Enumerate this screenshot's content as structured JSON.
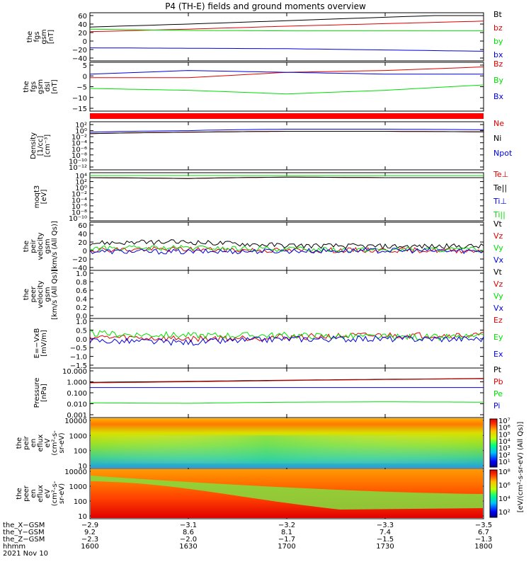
{
  "title": "P4 (TH-E) fields and ground moments overview",
  "colors": {
    "black": "#000000",
    "red": "#e00000",
    "green": "#00e000",
    "blue": "#0000e0",
    "statusbar": "#ff0000"
  },
  "chart_data": [
    {
      "type": "line",
      "name": "fgs_gsm",
      "ylabel": [
        "the",
        "fgs",
        "gsm",
        "[nT]"
      ],
      "yticks": [
        "60",
        "40",
        "20",
        "0",
        "−20",
        "−40"
      ],
      "ylim": [
        -40,
        60
      ],
      "x": [
        1600,
        1630,
        1700,
        1730,
        1800
      ],
      "series": [
        {
          "name": "Bt",
          "color": "#000000",
          "values": [
            33,
            40,
            48,
            56,
            64
          ]
        },
        {
          "name": "bz",
          "color": "#e00000",
          "values": [
            22,
            28,
            35,
            41,
            47
          ]
        },
        {
          "name": "by",
          "color": "#00e000",
          "values": [
            28,
            25,
            24,
            24,
            24
          ]
        },
        {
          "name": "bx",
          "color": "#0000e0",
          "values": [
            -16,
            -17,
            -18,
            -21,
            -24
          ]
        }
      ]
    },
    {
      "type": "line",
      "name": "fgs_dsl",
      "ylabel": [
        "the",
        "fgs",
        "gsm",
        "dsl",
        "[nT]"
      ],
      "yticks": [
        "5",
        "0",
        "−5",
        "−10",
        "−15"
      ],
      "ylim": [
        -18,
        6
      ],
      "x": [
        1600,
        1630,
        1700,
        1730,
        1800
      ],
      "series": [
        {
          "name": "Bz",
          "color": "#e00000",
          "values": [
            -1,
            -1,
            2,
            3,
            5
          ]
        },
        {
          "name": "By",
          "color": "#00e000",
          "values": [
            -7,
            -8,
            -10,
            -8,
            -5
          ]
        },
        {
          "name": "Bx",
          "color": "#0000e0",
          "values": [
            1,
            3,
            2,
            1,
            1
          ]
        }
      ]
    },
    {
      "type": "line",
      "name": "density",
      "ylabel": [
        "Density",
        "[1/cc]",
        "[cm⁻³]"
      ],
      "yticks": [
        "10²",
        "10⁰",
        "10⁻²",
        "10⁻⁴",
        "10⁻⁶",
        "10⁻⁸",
        "10⁻¹⁰",
        "10⁻¹²"
      ],
      "log": true,
      "ylim": [
        -12,
        2
      ],
      "x": [
        1600,
        1630,
        1700,
        1730,
        1800
      ],
      "series": [
        {
          "name": "Ne",
          "color": "#e00000",
          "values": [
            0.1,
            0.3,
            0.6,
            0.6,
            0.4
          ]
        },
        {
          "name": "Ni",
          "color": "#000000",
          "values": [
            0.1,
            0.3,
            0.6,
            0.6,
            0.4
          ]
        },
        {
          "name": "Npot",
          "color": "#0000e0",
          "values": [
            0.3,
            1.0,
            3.0,
            3.0,
            2.0
          ]
        }
      ]
    },
    {
      "type": "line",
      "name": "temperature",
      "ylabel": [
        "moqt3",
        "[eV]"
      ],
      "yticks": [
        "10⁴",
        "10²",
        "10⁰",
        "10⁻²",
        "10⁻⁴",
        "10⁻⁶",
        "10⁻⁸",
        "10⁻¹⁰"
      ],
      "log": true,
      "ylim": [
        -10,
        4
      ],
      "x": [
        1600,
        1630,
        1700,
        1730,
        1800
      ],
      "series": [
        {
          "name": "Te⊥",
          "color": "#e00000",
          "values": [
            2000,
            1000,
            3000,
            2000,
            2000
          ]
        },
        {
          "name": "Te||",
          "color": "#000000",
          "values": [
            2000,
            1000,
            3000,
            2000,
            2000
          ]
        },
        {
          "name": "Ti⊥",
          "color": "#0000e0",
          "values": [
            10000,
            10000,
            10000,
            10000,
            10000
          ]
        },
        {
          "name": "Ti||",
          "color": "#00e000",
          "values": [
            10000,
            10000,
            10000,
            10000,
            10000
          ]
        }
      ]
    },
    {
      "type": "line",
      "name": "peir_velocity",
      "ylabel": [
        "the",
        "peir",
        "velocity",
        "gsm",
        "[km/s (All Qs)]"
      ],
      "yticks": [
        "60",
        "40",
        "20",
        "0",
        "−20",
        "−40"
      ],
      "ylim": [
        -40,
        60
      ],
      "x": [
        1600,
        1630,
        1700,
        1730,
        1800
      ],
      "series": [
        {
          "name": "Vt",
          "color": "#000000",
          "values": [
            18,
            20,
            12,
            10,
            10
          ]
        },
        {
          "name": "Vz",
          "color": "#e00000",
          "values": [
            2,
            3,
            0,
            1,
            0
          ]
        },
        {
          "name": "Vy",
          "color": "#00e000",
          "values": [
            5,
            6,
            3,
            2,
            2
          ]
        },
        {
          "name": "Vx",
          "color": "#0000e0",
          "values": [
            -2,
            -3,
            -1,
            0,
            -1
          ]
        }
      ]
    },
    {
      "type": "line",
      "name": "peer_velocity",
      "ylabel": [
        "the",
        "peer",
        "velocity",
        "gsm",
        "[km/s (All Qs)]"
      ],
      "yticks": [
        "1.0",
        "0.8",
        "0.6",
        "0.4",
        "0.2",
        "0.0"
      ],
      "ylim": [
        0,
        1
      ],
      "x": [],
      "series": [
        {
          "name": "Vt",
          "color": "#000000",
          "values": []
        },
        {
          "name": "Vz",
          "color": "#e00000",
          "values": []
        },
        {
          "name": "Vy",
          "color": "#00e000",
          "values": []
        },
        {
          "name": "Vx",
          "color": "#0000e0",
          "values": []
        }
      ]
    },
    {
      "type": "line",
      "name": "e_field",
      "ylabel": [
        "E=−VxB",
        "[mV/m]"
      ],
      "yticks": [
        "1.0",
        "0.5",
        "0.0",
        "−0.5",
        "−1.0",
        "−1.5"
      ],
      "ylim": [
        -1.5,
        1.0
      ],
      "x": [
        1600,
        1630,
        1700,
        1730,
        1800
      ],
      "series": [
        {
          "name": "Ez",
          "color": "#e00000",
          "values": [
            0.1,
            0.0,
            0.1,
            0.2,
            0.2
          ]
        },
        {
          "name": "Ey",
          "color": "#00e000",
          "values": [
            0.3,
            0.2,
            0.2,
            0.1,
            0.1
          ]
        },
        {
          "name": "Ex",
          "color": "#0000e0",
          "values": [
            -0.1,
            -0.2,
            0.0,
            0.0,
            0.0
          ]
        }
      ]
    },
    {
      "type": "line",
      "name": "pressure",
      "ylabel": [
        "Pressure",
        "[nPa]"
      ],
      "yticks": [
        "10.000",
        "1.000",
        "0.100",
        "0.010",
        "0.001"
      ],
      "log": true,
      "ylim": [
        -3,
        1
      ],
      "x": [
        1600,
        1630,
        1700,
        1730,
        1800
      ],
      "series": [
        {
          "name": "Pt",
          "color": "#000000",
          "values": [
            0.9,
            1.1,
            1.4,
            1.7,
            2.0
          ]
        },
        {
          "name": "Pb",
          "color": "#e00000",
          "values": [
            0.8,
            1.0,
            1.3,
            1.6,
            1.9
          ]
        },
        {
          "name": "Pe",
          "color": "#00e000",
          "values": [
            0.012,
            0.011,
            0.014,
            0.015,
            0.014
          ]
        },
        {
          "name": "Pi",
          "color": "#0000e0",
          "values": [
            0.3,
            0.3,
            0.3,
            0.3,
            0.3
          ]
        }
      ]
    },
    {
      "type": "heatmap",
      "name": "peir_spectrogram",
      "ylabel": [
        "the",
        "peir",
        "en",
        "eflux",
        "eV",
        "(cm²-s-",
        "sr-eV)"
      ],
      "yticks": [
        "10000",
        "1000",
        "100",
        "10"
      ],
      "log": true,
      "ylim": [
        5,
        30000
      ]
    },
    {
      "type": "heatmap",
      "name": "peer_spectrogram",
      "ylabel": [
        "the",
        "peer",
        "en",
        "eflux",
        "eV",
        "(cm²-s-",
        "sr-eV)"
      ],
      "yticks": [
        "10000",
        "1000",
        "100",
        "10"
      ],
      "log": true,
      "ylim": [
        5,
        30000
      ]
    }
  ],
  "colorbar": {
    "label": "[eV/(cm²-s-sr-eV) (All Qs)]",
    "top_ticks": [
      "10⁷",
      "10⁶",
      "10⁵",
      "10⁴",
      "10³",
      "10²",
      "10¹"
    ],
    "bottom_ticks": [
      "10⁸",
      "10⁶",
      "10⁴",
      "10²"
    ]
  },
  "xaxis": {
    "row_labels": [
      "the_X−GSM",
      "the_Y−GSM",
      "the_Z−GSM",
      "hhmm",
      "2021 Nov 10"
    ],
    "columns": [
      {
        "x": "−2.9",
        "y": "9.2",
        "z": "−2.3",
        "hhmm": "1600"
      },
      {
        "x": "−3.1",
        "y": "8.6",
        "z": "−2.0",
        "hhmm": "1630"
      },
      {
        "x": "−3.2",
        "y": "8.1",
        "z": "−1.7",
        "hhmm": "1700"
      },
      {
        "x": "−3.3",
        "y": "7.4",
        "z": "−1.5",
        "hhmm": "1730"
      },
      {
        "x": "−3.5",
        "y": "6.7",
        "z": "−1.3",
        "hhmm": "1800"
      }
    ]
  }
}
